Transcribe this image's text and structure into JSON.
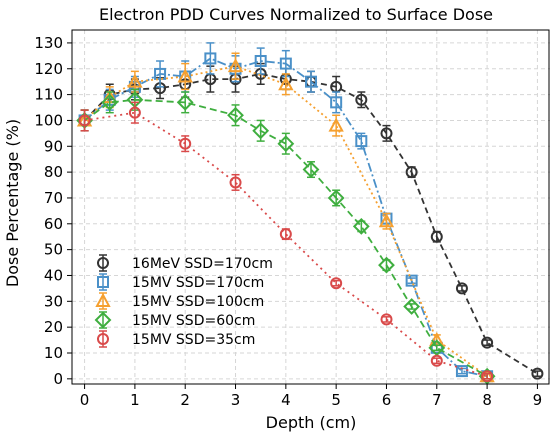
{
  "chart_data": {
    "type": "line",
    "title": "Electron PDD Curves Normalized to Surface Dose",
    "xlabel": "Depth (cm)",
    "ylabel": "Dose Percentage (%)",
    "xlim": [
      -0.25,
      9.25
    ],
    "ylim": [
      -2,
      135
    ],
    "xticks": [
      0,
      1,
      2,
      3,
      4,
      5,
      6,
      7,
      8,
      9
    ],
    "yticks": [
      0,
      10,
      20,
      30,
      40,
      50,
      60,
      70,
      80,
      90,
      100,
      110,
      120,
      130
    ],
    "grid": true,
    "legend_position": "lower-left",
    "series": [
      {
        "name": "16MeV SSD=170cm",
        "color": "#333333",
        "marker": "circle",
        "x": [
          0,
          0.5,
          1,
          1.5,
          2,
          2.5,
          3,
          3.5,
          4,
          4.5,
          5,
          5.5,
          6,
          6.5,
          7,
          7.5,
          8,
          9
        ],
        "y": [
          100,
          110,
          112,
          112.5,
          114,
          116,
          116,
          118,
          116,
          115,
          113,
          108,
          95,
          80,
          55,
          35,
          14,
          2
        ],
        "err": [
          4,
          4,
          4,
          4,
          5,
          5,
          5,
          4,
          4,
          4,
          4,
          3,
          3,
          2,
          2,
          1,
          1,
          1
        ]
      },
      {
        "name": "15MV SSD=170cm",
        "color": "#4a90c8",
        "marker": "square",
        "x": [
          0,
          0.5,
          1,
          1.5,
          2,
          2.5,
          3,
          3.5,
          4,
          4.5,
          5,
          5.5,
          6,
          6.5,
          7,
          7.5,
          8
        ],
        "y": [
          100,
          108,
          113,
          118,
          117,
          124,
          120,
          123,
          122,
          115,
          107,
          92,
          62,
          38,
          12,
          3,
          1
        ],
        "err": [
          4,
          4,
          4,
          5,
          6,
          6,
          5,
          5,
          5,
          4,
          4,
          3,
          2,
          1,
          1,
          1,
          1
        ]
      },
      {
        "name": "15MV SSD=100cm",
        "color": "#f5a030",
        "marker": "triangle",
        "x": [
          0,
          0.5,
          1,
          2,
          3,
          4,
          5,
          6,
          7,
          8
        ],
        "y": [
          100,
          109,
          115,
          117,
          121,
          114,
          98,
          61,
          15,
          1
        ],
        "err": [
          4,
          4,
          4,
          5,
          5,
          4,
          4,
          3,
          2,
          1
        ]
      },
      {
        "name": "15MV SSD=60cm",
        "color": "#3fae3f",
        "marker": "diamond",
        "x": [
          0,
          0.5,
          1,
          2,
          3,
          3.5,
          4,
          4.5,
          5,
          5.5,
          6,
          6.5,
          7,
          8
        ],
        "y": [
          100,
          107,
          108,
          107,
          102,
          96,
          91,
          81,
          70,
          59,
          44,
          28,
          12,
          1
        ],
        "err": [
          4,
          4,
          4,
          4,
          4,
          4,
          4,
          3,
          3,
          2,
          2,
          1,
          1,
          1
        ]
      },
      {
        "name": "15MV SSD=35cm",
        "color": "#d94a4a",
        "marker": "circle",
        "x": [
          0,
          1,
          2,
          3,
          4,
          5,
          6,
          7,
          8
        ],
        "y": [
          100,
          103,
          91,
          76,
          56,
          37,
          23,
          7,
          1
        ],
        "err": [
          4,
          4,
          3,
          3,
          2,
          1,
          1,
          1,
          1
        ]
      }
    ]
  }
}
